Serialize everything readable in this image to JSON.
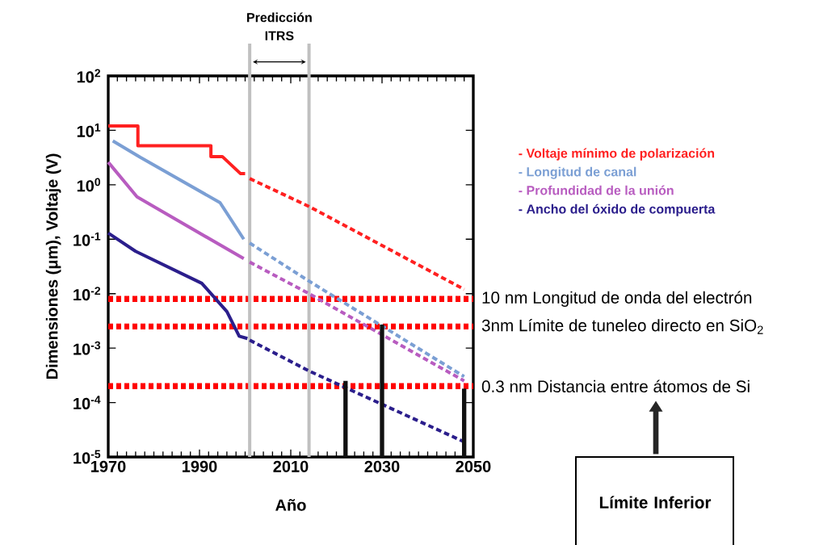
{
  "chart_data": {
    "type": "line",
    "xlabel": "Año",
    "ylabel": "Dimensiones (μm), Voltaje (V)",
    "xlim": [
      1970,
      2050
    ],
    "ylim": [
      1e-05,
      100
    ],
    "log": "y",
    "legend": "right",
    "marker": "none",
    "xticks": [
      1970,
      1990,
      2010,
      2030,
      2050
    ],
    "yticks": [
      {
        "value": 1e-05,
        "label": "10$^{-5}$"
      },
      {
        "value": 0.0001,
        "label": "10$^{-4}$"
      },
      {
        "value": 0.001,
        "label": "10$^{-3}$"
      },
      {
        "value": 0.01,
        "label": "10$^{-2}$"
      },
      {
        "value": 0.1,
        "label": "10$^{-1}$"
      },
      {
        "value": 1,
        "label": "10$^{0}$"
      },
      {
        "value": 10,
        "label": "10$^{1}$"
      },
      {
        "value": 100,
        "label": "10$^{2}$"
      }
    ],
    "series": [
      {
        "name": "- Voltaje mínimo de polarización",
        "color": "#ff2020",
        "line_style": "solid",
        "x": [
          1970,
          1976.5,
          1976.5,
          1992.5,
          1992.5,
          1995,
          1999,
          2000
        ],
        "values": [
          12,
          12,
          5.2,
          5.2,
          3.3,
          3.3,
          1.6,
          1.6
        ]
      },
      {
        "name": "- Longitud de canal",
        "color": "#7b9fd4",
        "line_style": "solid",
        "x": [
          1971,
          1977,
          1994.5,
          1999.7
        ],
        "values": [
          6.4,
          3.2,
          0.47,
          0.1
        ]
      },
      {
        "name": "- Profundidad de la unión",
        "color": "#b85cc0",
        "line_style": "solid",
        "x": [
          1970,
          1976.3,
          1999.7
        ],
        "values": [
          2.6,
          0.6,
          0.044
        ]
      },
      {
        "name": "- Ancho del óxido de compuerta",
        "color": "#2b1e8c",
        "line_style": "solid",
        "x": [
          1970,
          1976,
          1990.5,
          1996,
          1998.7,
          2000.5
        ],
        "values": [
          0.13,
          0.06,
          0.0155,
          0.0047,
          0.00166,
          0.0015
        ]
      },
      {
        "color": "#ff2020",
        "line_style": "dashed",
        "x": [
          2001,
          2014,
          2048
        ],
        "values": [
          1.3,
          0.4,
          0.012
        ]
      },
      {
        "color": "#7b9fd4",
        "line_style": "dashed",
        "x": [
          2001,
          2014,
          2048
        ],
        "values": [
          0.085,
          0.017,
          0.0003
        ]
      },
      {
        "color": "#b85cc0",
        "line_style": "dashed",
        "x": [
          2001,
          2014,
          2048
        ],
        "values": [
          0.038,
          0.01,
          0.00025
        ]
      },
      {
        "color": "#2b1e8c",
        "line_style": "dashed",
        "x": [
          2001,
          2014,
          2048
        ],
        "values": [
          0.0014,
          0.00038,
          1.9e-05
        ]
      },
      {
        "type": "bar",
        "color": "#111111",
        "x": [
          2022,
          2030,
          2048
        ],
        "values": [
          0.00025,
          0.0027,
          0.00018
        ]
      }
    ],
    "ref_lines": [
      {
        "axis": "y",
        "value": 0.008,
        "label": "10 nm Longitud de onda del electrón",
        "color": "#ff0000",
        "line_style": "dotted"
      },
      {
        "axis": "y",
        "value": 0.0025,
        "label": "3nm Límite de tuneleo directo en SiO$_{2}$",
        "color": "#ff0000",
        "line_style": "dotted"
      },
      {
        "axis": "y",
        "value": 0.0002,
        "label": "0.3 nm Distancia entre átomos de Si",
        "color": "#ff0000",
        "line_style": "dotted"
      },
      {
        "axis": "x",
        "value": 2001,
        "color": "#c0c0c0",
        "line_style": "solid"
      },
      {
        "axis": "x",
        "value": 2014,
        "color": "#c0c0c0",
        "line_style": "solid"
      }
    ],
    "annotations": [
      "Predicción ITRS",
      "Límite Inferior"
    ]
  }
}
